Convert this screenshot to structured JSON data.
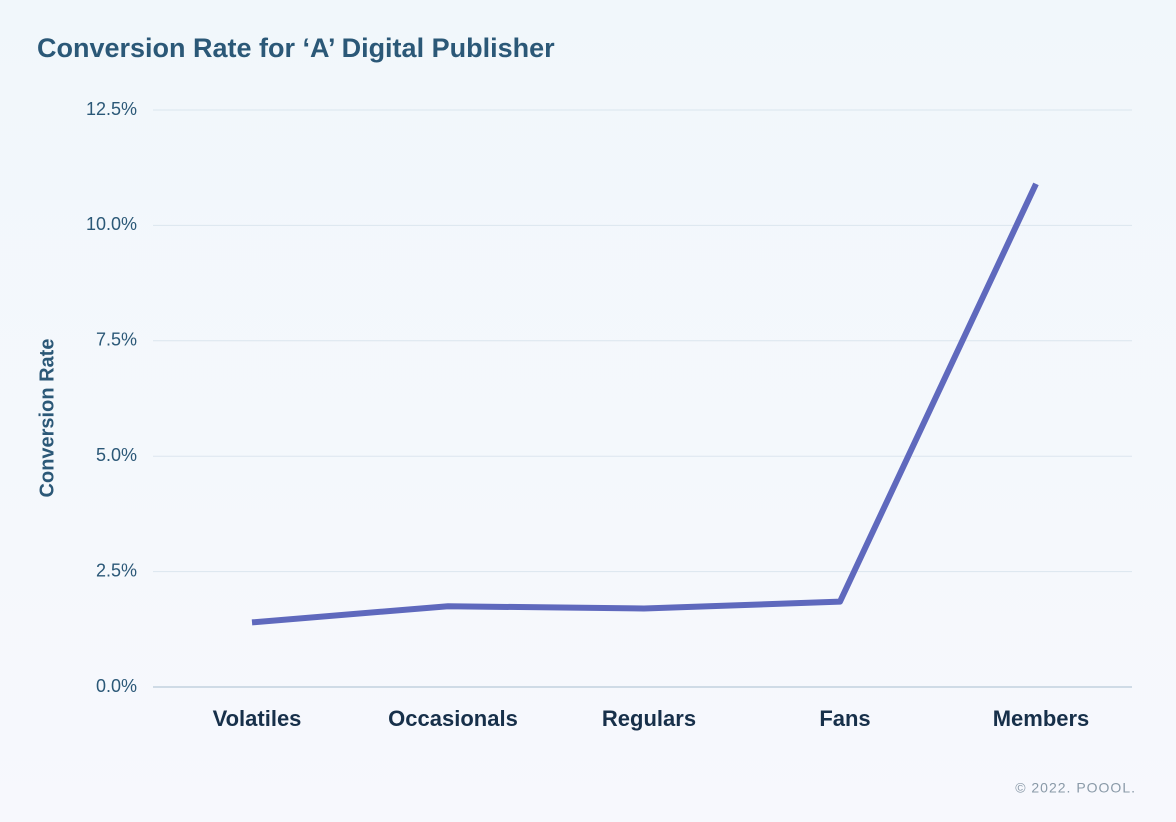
{
  "chart_data": {
    "type": "line",
    "title": "Conversion Rate for ‘A’ Digital Publisher",
    "y_label": "Conversion Rate",
    "categories": [
      "Volatiles",
      "Occasionals",
      "Regulars",
      "Fans",
      "Members"
    ],
    "values": [
      1.4,
      1.75,
      1.7,
      1.85,
      10.9
    ],
    "color": "#5f69bd",
    "ylim": [
      0,
      12.5
    ],
    "yticks": [
      {
        "value": 0,
        "label": "0.0%"
      },
      {
        "value": 2.5,
        "label": "2.5%"
      },
      {
        "value": 5,
        "label": "5.0%"
      },
      {
        "value": 7.5,
        "label": "7.5%"
      },
      {
        "value": 10,
        "label": "10.0%"
      },
      {
        "value": 12.5,
        "label": "12.5%"
      }
    ],
    "grid": true,
    "footer": "© 2022. POOOL."
  }
}
